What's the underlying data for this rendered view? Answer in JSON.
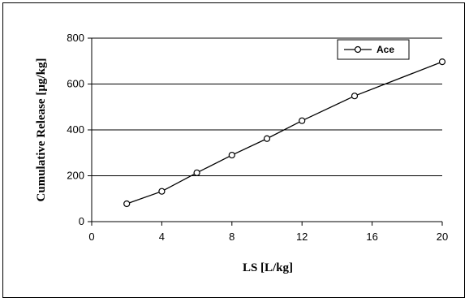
{
  "chart_data": {
    "type": "line",
    "title": "",
    "xlabel": "LS [L/kg]",
    "ylabel": "Cumulative Release [µg/kg]",
    "xlim": [
      0,
      20
    ],
    "ylim": [
      0,
      800
    ],
    "x_ticks": [
      0,
      4,
      8,
      12,
      16,
      20
    ],
    "y_ticks": [
      0,
      200,
      400,
      600,
      800
    ],
    "grid": "horizontal",
    "legend_position": "top-right",
    "series": [
      {
        "name": "Ace",
        "color": "#000000",
        "marker": "open-circle",
        "x": [
          2,
          4,
          6,
          8,
          10,
          12,
          15,
          20
        ],
        "y": [
          78,
          132,
          213,
          290,
          362,
          440,
          548,
          697
        ]
      }
    ]
  }
}
